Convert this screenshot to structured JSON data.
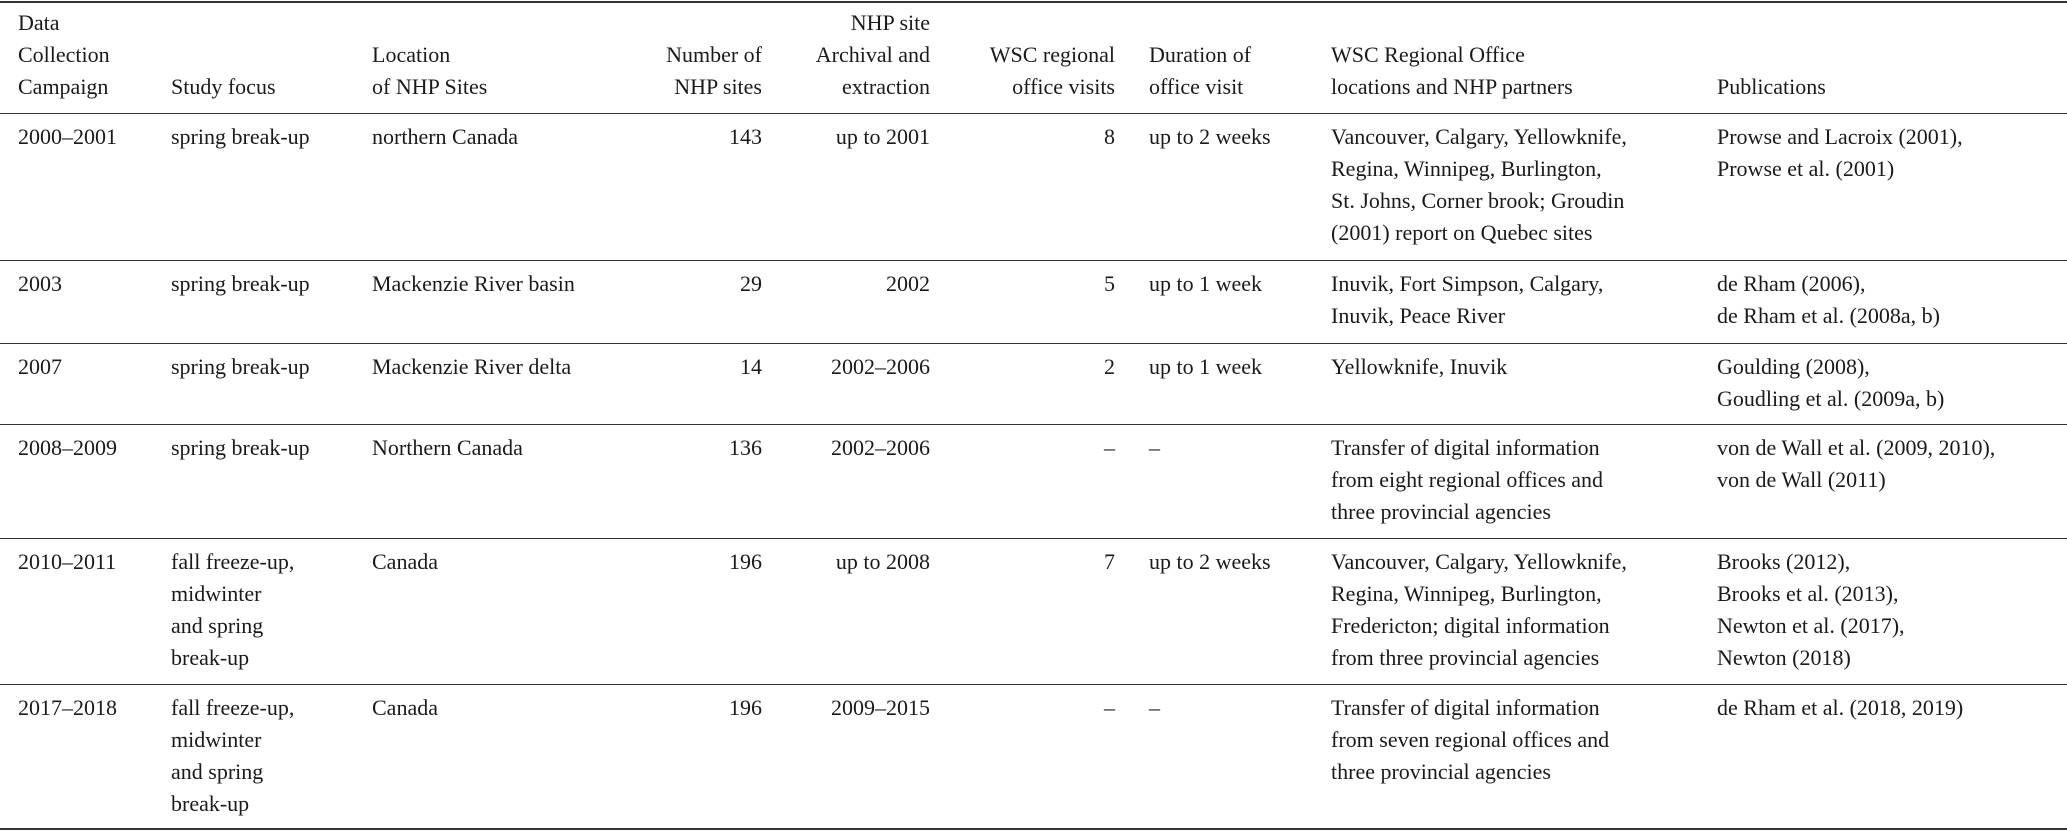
{
  "table": {
    "header": [
      [
        "Data",
        "Collection",
        "Campaign"
      ],
      [
        "Study focus"
      ],
      [
        "Location",
        "of NHP Sites"
      ],
      [
        "Number of",
        "NHP sites"
      ],
      [
        "NHP site",
        "Archival and",
        "extraction"
      ],
      [
        "WSC regional",
        "office visits"
      ],
      [
        "Duration of",
        "office visit"
      ],
      [
        "WSC Regional Office",
        "locations and NHP partners"
      ],
      [
        "Publications"
      ]
    ],
    "rows": [
      [
        [
          "2000–2001"
        ],
        [
          "spring break-up"
        ],
        [
          "northern Canada"
        ],
        [
          "143"
        ],
        [
          "up to 2001"
        ],
        [
          "8"
        ],
        [
          "up to 2 weeks"
        ],
        [
          "Vancouver, Calgary, Yellowknife,",
          "Regina, Winnipeg, Burlington,",
          "St. Johns, Corner brook; Groudin",
          "(2001) report on Quebec sites"
        ],
        [
          "Prowse and Lacroix (2001),",
          "Prowse et al. (2001)"
        ]
      ],
      [
        [
          "2003"
        ],
        [
          "spring break-up"
        ],
        [
          "Mackenzie River basin"
        ],
        [
          "29"
        ],
        [
          "2002"
        ],
        [
          "5"
        ],
        [
          "up to 1 week"
        ],
        [
          "Inuvik, Fort Simpson, Calgary,",
          "Inuvik, Peace River"
        ],
        [
          "de Rham (2006),",
          "de Rham et al. (2008a, b)"
        ]
      ],
      [
        [
          "2007"
        ],
        [
          "spring break-up"
        ],
        [
          "Mackenzie River delta"
        ],
        [
          "14"
        ],
        [
          "2002–2006"
        ],
        [
          "2"
        ],
        [
          "up to 1 week"
        ],
        [
          "Yellowknife, Inuvik"
        ],
        [
          "Goulding (2008),",
          "Goudling et al. (2009a, b)"
        ]
      ],
      [
        [
          "2008–2009"
        ],
        [
          "spring break-up"
        ],
        [
          "Northern Canada"
        ],
        [
          "136"
        ],
        [
          "2002–2006"
        ],
        [
          "–"
        ],
        [
          "–"
        ],
        [
          "Transfer of digital information",
          "from eight regional offices and",
          "three provincial agencies"
        ],
        [
          "von de Wall et al. (2009, 2010),",
          "von de Wall (2011)"
        ]
      ],
      [
        [
          "2010–2011"
        ],
        [
          "fall freeze-up,",
          "midwinter",
          "and spring",
          "break-up"
        ],
        [
          "Canada"
        ],
        [
          "196"
        ],
        [
          "up to 2008"
        ],
        [
          "7"
        ],
        [
          "up to 2 weeks"
        ],
        [
          "Vancouver, Calgary, Yellowknife,",
          "Regina, Winnipeg, Burlington,",
          "Fredericton; digital information",
          "from three provincial agencies"
        ],
        [
          "Brooks (2012),",
          "Brooks et al. (2013),",
          "Newton et al. (2017),",
          "Newton (2018)"
        ]
      ],
      [
        [
          "2017–2018"
        ],
        [
          "fall freeze-up,",
          "midwinter",
          "and spring",
          "break-up"
        ],
        [
          "Canada"
        ],
        [
          "196"
        ],
        [
          "2009–2015"
        ],
        [
          "–"
        ],
        [
          "–"
        ],
        [
          "Transfer of digital information",
          "from seven regional offices and",
          "three provincial agencies"
        ],
        [
          "de Rham et al. (2018, 2019)"
        ]
      ]
    ]
  }
}
